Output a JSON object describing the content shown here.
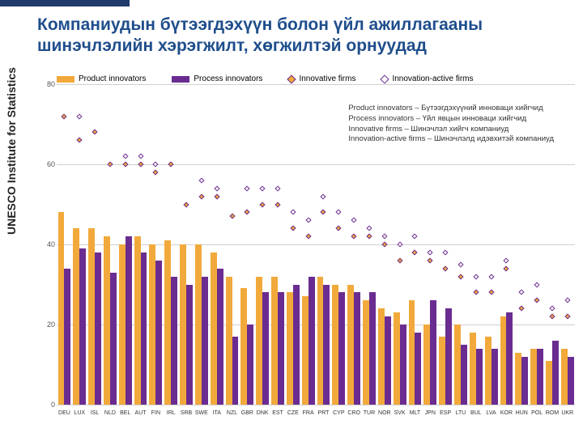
{
  "header_bar_color": "#1f3a6b",
  "title": {
    "text": "Компаниудын бүтээгдэхүүн болон үйл ажиллагааны шинэчлэлийн хэрэгжилт, хөгжилтэй орнуудад",
    "color": "#1f4e8c",
    "fontsize": 21
  },
  "sidebar": {
    "text": "UNESCO Institute for Statistics",
    "color": "#222"
  },
  "legend": [
    {
      "type": "box",
      "label": "Product innovators",
      "fill": "#f2a93b"
    },
    {
      "type": "box",
      "label": "Process innovators",
      "fill": "#6a2c91"
    },
    {
      "type": "diamond",
      "label": "Innovative firms",
      "fill": "#f2a93b",
      "stroke": "#6a2c91"
    },
    {
      "type": "diamond",
      "label": "Innovation-active firms",
      "fill": "#ffffff",
      "stroke": "#6a2c91"
    }
  ],
  "note": [
    "Product innovators – Бүтээгдэхүүний инноваци хийгчид",
    "Process innovators – Үйл явцын инноваци хийгчид",
    "Innovative firms – Шинэчлэл хийгч компаниуд",
    "Innovation-active firms – Шинэчлэлд идэвхитэй компаниуд"
  ],
  "chart": {
    "type": "bar+scatter",
    "ylim": [
      0,
      80
    ],
    "yticks": [
      0,
      20,
      40,
      60,
      80
    ],
    "grid_color": "#d0d0d0",
    "bar1_color": "#f2a93b",
    "bar2_color": "#6a2c91",
    "marker1": {
      "fill": "#f2a93b",
      "stroke": "#6a2c91"
    },
    "marker2": {
      "fill": "#ffffff",
      "stroke": "#6a2c91"
    },
    "countries": [
      "DEU",
      "LUX",
      "ISL",
      "NLD",
      "BEL",
      "AUT",
      "FIN",
      "IRL",
      "SRB",
      "SWE",
      "ITA",
      "NZL",
      "GBR",
      "DNK",
      "EST",
      "CZE",
      "FRA",
      "PRT",
      "CYP",
      "CRO",
      "TUR",
      "NOR",
      "SVK",
      "MLT",
      "JPN",
      "ESP",
      "LTU",
      "BUL",
      "LVA",
      "KOR",
      "HUN",
      "POL",
      "ROM",
      "UKR"
    ],
    "product": [
      48,
      44,
      44,
      42,
      40,
      42,
      40,
      41,
      40,
      40,
      38,
      32,
      29,
      32,
      32,
      28,
      27,
      32,
      30,
      30,
      26,
      24,
      23,
      26,
      20,
      17,
      20,
      18,
      17,
      22,
      13,
      14,
      11,
      14
    ],
    "process": [
      34,
      39,
      38,
      33,
      42,
      38,
      36,
      32,
      30,
      32,
      34,
      17,
      20,
      28,
      28,
      30,
      32,
      30,
      28,
      28,
      28,
      22,
      20,
      18,
      26,
      24,
      15,
      14,
      14,
      23,
      12,
      14,
      16,
      12
    ],
    "innov": [
      72,
      66,
      68,
      60,
      60,
      60,
      58,
      60,
      50,
      52,
      52,
      47,
      48,
      50,
      50,
      44,
      42,
      48,
      44,
      42,
      42,
      40,
      36,
      38,
      36,
      34,
      32,
      28,
      28,
      34,
      24,
      26,
      22,
      22
    ],
    "active": [
      null,
      72,
      null,
      null,
      62,
      62,
      60,
      null,
      null,
      56,
      54,
      null,
      54,
      54,
      54,
      48,
      46,
      52,
      48,
      46,
      44,
      42,
      40,
      42,
      38,
      38,
      35,
      32,
      32,
      36,
      28,
      30,
      24,
      26
    ]
  }
}
